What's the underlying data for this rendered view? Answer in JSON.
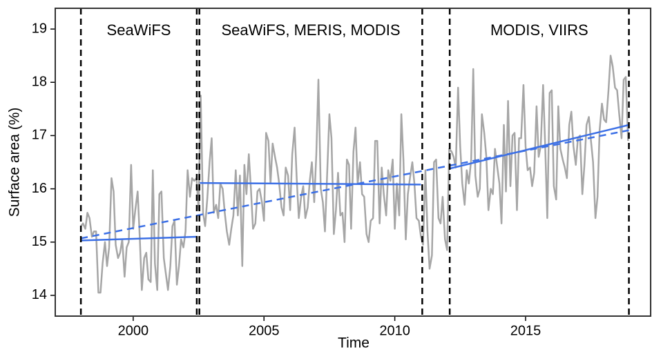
{
  "chart_data": {
    "type": "line",
    "x_label": "Time",
    "y_label": "Surface area (%)",
    "xlim": [
      1997.02,
      2019.78
    ],
    "ylim": [
      13.61,
      19.39
    ],
    "xticks": [
      2000,
      2005,
      2010,
      2015
    ],
    "yticks": [
      14,
      15,
      16,
      17,
      18,
      19
    ],
    "vlines": [
      1998,
      2002.43,
      2002.53,
      2011.05,
      2012.1,
      2018.95
    ],
    "region_labels": [
      "SeaWiFS",
      "SeaWiFS, MERIS, MODIS",
      "MODIS, VIIRS"
    ],
    "series": [
      {
        "color": "#a6a6a6",
        "x": [
          1998,
          1998.08,
          1998.17,
          1998.25,
          1998.33,
          1998.42,
          1998.5,
          1998.58,
          1998.67,
          1998.75,
          1998.83,
          1998.92,
          1999,
          1999.08,
          1999.17,
          1999.25,
          1999.33,
          1999.42,
          1999.5,
          1999.58,
          1999.67,
          1999.75,
          1999.83,
          1999.92,
          2000,
          2000.08,
          2000.17,
          2000.25,
          2000.33,
          2000.42,
          2000.5,
          2000.58,
          2000.67,
          2000.75,
          2000.83,
          2000.92,
          2001,
          2001.08,
          2001.17,
          2001.25,
          2001.33,
          2001.42,
          2001.5,
          2001.58,
          2001.67,
          2001.75,
          2001.83,
          2001.92,
          2002,
          2002.08,
          2002.17,
          2002.25,
          2002.33,
          2002.42,
          2002.5,
          2002.58,
          2002.67,
          2002.75,
          2002.83,
          2002.92,
          2003,
          2003.08,
          2003.17,
          2003.25,
          2003.33,
          2003.42,
          2003.5,
          2003.58,
          2003.67,
          2003.75,
          2003.83,
          2003.92,
          2004,
          2004.08,
          2004.17,
          2004.25,
          2004.33,
          2004.42,
          2004.5,
          2004.58,
          2004.67,
          2004.75,
          2004.83,
          2004.92,
          2005,
          2005.08,
          2005.17,
          2005.25,
          2005.33,
          2005.42,
          2005.5,
          2005.58,
          2005.67,
          2005.75,
          2005.83,
          2005.92,
          2006,
          2006.08,
          2006.17,
          2006.25,
          2006.33,
          2006.42,
          2006.5,
          2006.58,
          2006.67,
          2006.75,
          2006.83,
          2006.92,
          2007,
          2007.08,
          2007.17,
          2007.25,
          2007.33,
          2007.42,
          2007.5,
          2007.58,
          2007.67,
          2007.75,
          2007.83,
          2007.92,
          2008,
          2008.08,
          2008.17,
          2008.25,
          2008.33,
          2008.42,
          2008.5,
          2008.58,
          2008.67,
          2008.75,
          2008.83,
          2008.92,
          2009,
          2009.08,
          2009.17,
          2009.25,
          2009.33,
          2009.42,
          2009.5,
          2009.58,
          2009.67,
          2009.75,
          2009.83,
          2009.92,
          2010,
          2010.08,
          2010.17,
          2010.25,
          2010.33,
          2010.42,
          2010.5,
          2010.58,
          2010.67,
          2010.75,
          2010.83,
          2010.92,
          2011,
          2011.08,
          2011.17,
          2011.25,
          2011.33,
          2011.42,
          2011.5,
          2011.58,
          2011.67,
          2011.75,
          2011.83,
          2011.92,
          2012,
          2012.08,
          2012.17,
          2012.25,
          2012.33,
          2012.42,
          2012.5,
          2012.58,
          2012.67,
          2012.75,
          2012.83,
          2012.92,
          2013,
          2013.08,
          2013.17,
          2013.25,
          2013.33,
          2013.42,
          2013.5,
          2013.58,
          2013.67,
          2013.75,
          2013.83,
          2013.92,
          2014,
          2014.08,
          2014.17,
          2014.25,
          2014.33,
          2014.42,
          2014.5,
          2014.58,
          2014.67,
          2014.75,
          2014.83,
          2014.92,
          2015,
          2015.08,
          2015.17,
          2015.25,
          2015.33,
          2015.42,
          2015.5,
          2015.58,
          2015.67,
          2015.75,
          2015.83,
          2015.92,
          2016,
          2016.08,
          2016.17,
          2016.25,
          2016.33,
          2016.42,
          2016.5,
          2016.58,
          2016.67,
          2016.75,
          2016.83,
          2016.92,
          2017,
          2017.08,
          2017.17,
          2017.25,
          2017.33,
          2017.42,
          2017.5,
          2017.58,
          2017.67,
          2017.75,
          2017.83,
          2017.92,
          2018,
          2018.08,
          2018.17,
          2018.25,
          2018.33,
          2018.42,
          2018.5,
          2018.58,
          2018.67,
          2018.75,
          2018.83,
          2018.92
        ],
        "values": [
          15.3,
          15.35,
          15.25,
          15.55,
          15.45,
          15.1,
          15.2,
          15.2,
          14.05,
          14.05,
          14.6,
          15.0,
          14.55,
          14.9,
          16.2,
          15.95,
          14.95,
          14.7,
          14.8,
          15.05,
          14.35,
          14.9,
          15.0,
          16.45,
          15.25,
          15.6,
          15.95,
          15.1,
          14.1,
          14.7,
          14.8,
          14.3,
          14.25,
          16.35,
          14.6,
          14.1,
          15.9,
          15.95,
          14.7,
          14.4,
          14.1,
          14.55,
          15.3,
          15.4,
          14.2,
          14.55,
          15.05,
          14.9,
          15.2,
          16.35,
          15.85,
          16.2,
          16.15,
          16.2,
          15.6,
          17.75,
          15.55,
          15.3,
          15.8,
          16.5,
          16.95,
          15.55,
          15.7,
          15.45,
          16.1,
          16.0,
          15.55,
          15.2,
          14.95,
          15.25,
          15.5,
          16.35,
          15.5,
          16.25,
          14.55,
          16.45,
          15.9,
          16.65,
          16.0,
          15.25,
          15.35,
          15.95,
          16.0,
          15.75,
          15.4,
          17.05,
          16.9,
          16.1,
          16.85,
          16.6,
          16.4,
          16.1,
          15.65,
          15.5,
          16.4,
          16.25,
          15.6,
          16.65,
          17.15,
          16.2,
          15.45,
          15.85,
          16.05,
          15.45,
          15.65,
          16.15,
          16.5,
          15.75,
          16.65,
          18.05,
          16.0,
          15.75,
          15.2,
          16.35,
          17.4,
          16.95,
          15.15,
          15.6,
          16.3,
          15.5,
          15.55,
          15.0,
          16.55,
          16.45,
          15.25,
          16.7,
          17.15,
          16.1,
          16.5,
          15.9,
          15.85,
          15.15,
          15.0,
          15.4,
          15.45,
          16.9,
          16.9,
          15.35,
          16.4,
          15.9,
          15.5,
          16.35,
          16.15,
          16.55,
          15.25,
          16.1,
          15.5,
          17.4,
          16.55,
          15.05,
          15.9,
          16.2,
          16.5,
          16.1,
          15.45,
          15.4,
          15.1,
          14.95,
          16.35,
          15.2,
          14.5,
          14.75,
          16.5,
          16.55,
          15.45,
          15.35,
          15.85,
          15.05,
          14.85,
          16.75,
          16.7,
          16.6,
          16.4,
          17.9,
          16.8,
          16.1,
          15.7,
          16.35,
          16.1,
          16.55,
          18.25,
          16.25,
          15.85,
          16.0,
          17.4,
          17.05,
          16.6,
          15.6,
          16.0,
          15.9,
          16.75,
          16.4,
          16.1,
          15.35,
          17.2,
          15.95,
          17.65,
          16.05,
          17.0,
          17.05,
          15.6,
          16.95,
          16.95,
          17.95,
          16.8,
          16.35,
          16.4,
          16.05,
          16.3,
          17.55,
          16.6,
          16.8,
          17.95,
          16.8,
          15.45,
          17.8,
          17.85,
          16.05,
          15.8,
          17.55,
          16.75,
          16.55,
          16.4,
          16.2,
          17.2,
          17.45,
          16.8,
          16.45,
          16.95,
          17.0,
          15.9,
          16.45,
          17.2,
          17.35,
          16.9,
          16.5,
          15.45,
          15.85,
          17.1,
          17.6,
          17.3,
          17.25,
          17.85,
          18.5,
          18.3,
          17.9,
          17.85,
          17.4,
          16.95,
          18.05,
          18.1,
          16.9
        ]
      }
    ],
    "trend_lines": [
      {
        "style": "solid",
        "color": "#3b6fe6",
        "x": [
          1998,
          2002.45
        ],
        "y": [
          15.03,
          15.1
        ]
      },
      {
        "style": "solid",
        "color": "#3b6fe6",
        "x": [
          2002.55,
          2011.0
        ],
        "y": [
          16.11,
          16.08
        ]
      },
      {
        "style": "solid",
        "color": "#3b6fe6",
        "x": [
          2012.1,
          2018.95
        ],
        "y": [
          16.38,
          17.2
        ]
      },
      {
        "style": "dashed",
        "color": "#3b6fe6",
        "x": [
          1998,
          2018.95
        ],
        "y": [
          15.07,
          17.1
        ]
      }
    ]
  }
}
